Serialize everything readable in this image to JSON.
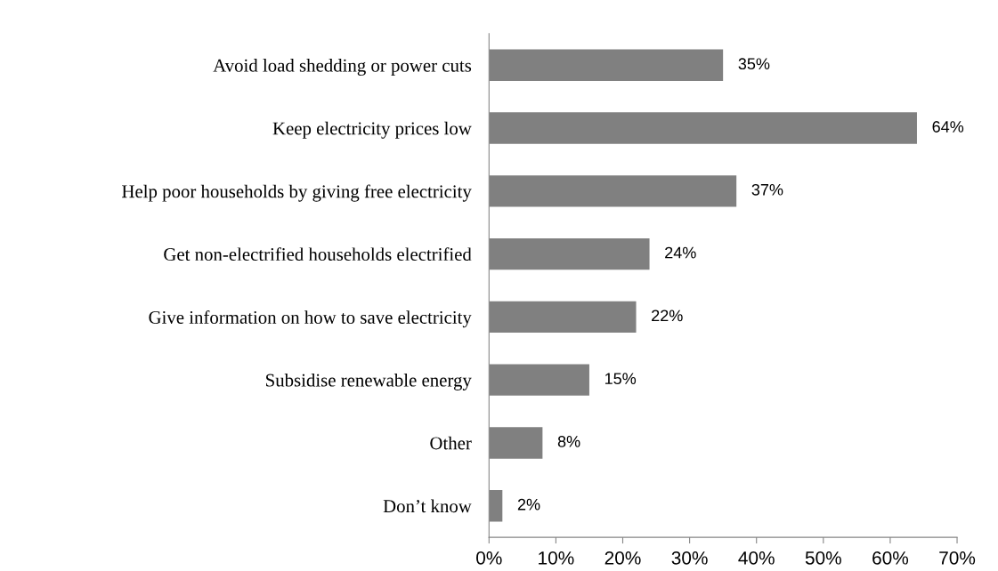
{
  "chart_data": {
    "type": "bar",
    "orientation": "horizontal",
    "categories": [
      "Avoid load shedding or power cuts",
      "Keep electricity prices low",
      "Help poor households by giving free electricity",
      "Get non-electrified households electrified",
      "Give information on how to save electricity",
      "Subsidise renewable energy",
      "Other",
      "Don’t know"
    ],
    "values": [
      35,
      64,
      37,
      24,
      22,
      15,
      8,
      2
    ],
    "value_labels": [
      "35%",
      "64%",
      "37%",
      "24%",
      "22%",
      "15%",
      "8%",
      "2%"
    ],
    "color": "#808080",
    "xlim": [
      0,
      70
    ],
    "xticks": [
      {
        "value": 0,
        "label": "0%"
      },
      {
        "value": 10,
        "label": "10%"
      },
      {
        "value": 20,
        "label": "20%"
      },
      {
        "value": 30,
        "label": "30%"
      },
      {
        "value": 40,
        "label": "40%"
      },
      {
        "value": 50,
        "label": "50%"
      },
      {
        "value": 60,
        "label": "60%"
      },
      {
        "value": 70,
        "label": "70%"
      }
    ],
    "grid": false,
    "legend": false
  }
}
